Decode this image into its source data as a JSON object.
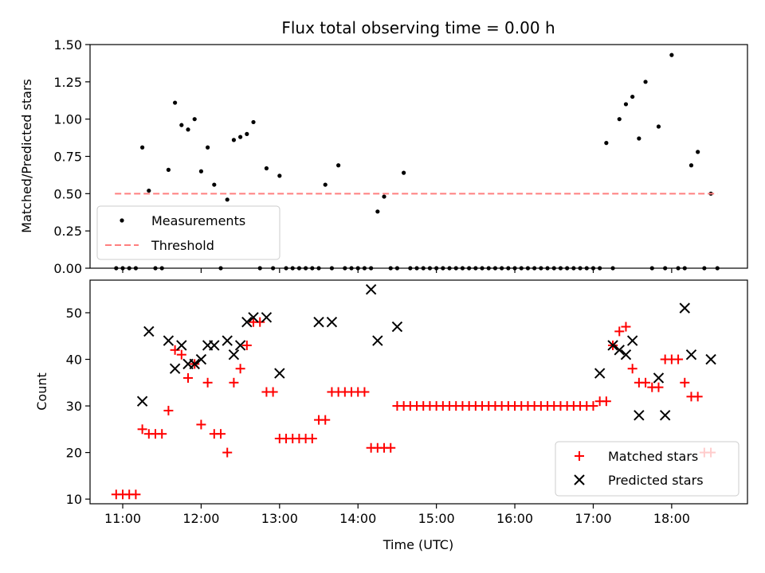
{
  "chart_data": [
    {
      "type": "scatter",
      "title": "Flux total observing time = 0.00 h",
      "xlabel": "",
      "ylabel": "Matched/Predicted stars",
      "xlim": [
        "10:35",
        "18:58"
      ],
      "ylim": [
        0,
        1.5
      ],
      "yticks": [
        "0.00",
        "0.25",
        "0.50",
        "0.75",
        "1.00",
        "1.25",
        "1.50"
      ],
      "xticks": [
        "11:00",
        "12:00",
        "13:00",
        "14:00",
        "15:00",
        "16:00",
        "17:00",
        "18:00"
      ],
      "legend_position": "lower-left",
      "colors": {
        "measurements": "#000000",
        "threshold": "#ff7f7f"
      },
      "series": [
        {
          "name": "Measurements",
          "style": "dot",
          "points": [
            [
              "10:55",
              0
            ],
            [
              "11:00",
              0
            ],
            [
              "11:05",
              0
            ],
            [
              "11:10",
              0
            ],
            [
              "11:15",
              0.81
            ],
            [
              "11:20",
              0.52
            ],
            [
              "11:25",
              0
            ],
            [
              "11:30",
              0
            ],
            [
              "11:35",
              0.66
            ],
            [
              "11:40",
              1.11
            ],
            [
              "11:45",
              0.96
            ],
            [
              "11:50",
              0.93
            ],
            [
              "11:55",
              1.0
            ],
            [
              "12:00",
              0.65
            ],
            [
              "12:05",
              0.81
            ],
            [
              "12:10",
              0.56
            ],
            [
              "12:15",
              0
            ],
            [
              "12:20",
              0.46
            ],
            [
              "12:25",
              0.86
            ],
            [
              "12:30",
              0.88
            ],
            [
              "12:35",
              0.9
            ],
            [
              "12:40",
              0.98
            ],
            [
              "12:45",
              0
            ],
            [
              "12:50",
              0.67
            ],
            [
              "12:55",
              0
            ],
            [
              "13:00",
              0.62
            ],
            [
              "13:05",
              0
            ],
            [
              "13:10",
              0
            ],
            [
              "13:15",
              0
            ],
            [
              "13:20",
              0
            ],
            [
              "13:25",
              0
            ],
            [
              "13:30",
              0
            ],
            [
              "13:35",
              0.56
            ],
            [
              "13:40",
              0
            ],
            [
              "13:45",
              0.69
            ],
            [
              "13:50",
              0
            ],
            [
              "13:55",
              0
            ],
            [
              "14:00",
              0
            ],
            [
              "14:05",
              0
            ],
            [
              "14:10",
              0
            ],
            [
              "14:15",
              0.38
            ],
            [
              "14:20",
              0.48
            ],
            [
              "14:25",
              0
            ],
            [
              "14:30",
              0
            ],
            [
              "14:35",
              0.64
            ],
            [
              "14:40",
              0
            ],
            [
              "14:45",
              0
            ],
            [
              "14:50",
              0
            ],
            [
              "14:55",
              0
            ],
            [
              "15:00",
              0
            ],
            [
              "15:05",
              0
            ],
            [
              "15:10",
              0
            ],
            [
              "15:15",
              0
            ],
            [
              "15:20",
              0
            ],
            [
              "15:25",
              0
            ],
            [
              "15:30",
              0
            ],
            [
              "15:35",
              0
            ],
            [
              "15:40",
              0
            ],
            [
              "15:45",
              0
            ],
            [
              "15:50",
              0
            ],
            [
              "15:55",
              0
            ],
            [
              "16:00",
              0
            ],
            [
              "16:05",
              0
            ],
            [
              "16:10",
              0
            ],
            [
              "16:15",
              0
            ],
            [
              "16:20",
              0
            ],
            [
              "16:25",
              0
            ],
            [
              "16:30",
              0
            ],
            [
              "16:35",
              0
            ],
            [
              "16:40",
              0
            ],
            [
              "16:45",
              0
            ],
            [
              "16:50",
              0
            ],
            [
              "16:55",
              0
            ],
            [
              "17:00",
              0
            ],
            [
              "17:05",
              0
            ],
            [
              "17:10",
              0.84
            ],
            [
              "17:15",
              0
            ],
            [
              "17:20",
              1.0
            ],
            [
              "17:25",
              1.1
            ],
            [
              "17:30",
              1.15
            ],
            [
              "17:35",
              0.87
            ],
            [
              "17:40",
              1.25
            ],
            [
              "17:45",
              0
            ],
            [
              "17:50",
              0.95
            ],
            [
              "17:55",
              0
            ],
            [
              "18:00",
              1.43
            ],
            [
              "18:05",
              0
            ],
            [
              "18:10",
              0
            ],
            [
              "18:15",
              0.69
            ],
            [
              "18:20",
              0.78
            ],
            [
              "18:25",
              0
            ],
            [
              "18:30",
              0.5
            ],
            [
              "18:35",
              0
            ]
          ]
        },
        {
          "name": "Threshold",
          "style": "dashed-line",
          "points": [
            [
              "10:54",
              0.5
            ],
            [
              "18:35",
              0.5
            ]
          ]
        }
      ]
    },
    {
      "type": "scatter",
      "title": "",
      "xlabel": "Time (UTC)",
      "ylabel": "Count",
      "xlim": [
        "10:35",
        "18:58"
      ],
      "ylim": [
        9,
        57
      ],
      "yticks": [
        "10",
        "20",
        "30",
        "40",
        "50"
      ],
      "xticks": [
        "11:00",
        "12:00",
        "13:00",
        "14:00",
        "15:00",
        "16:00",
        "17:00",
        "18:00"
      ],
      "legend_position": "lower-right",
      "colors": {
        "matched": "#ff0000",
        "predicted": "#000000"
      },
      "series": [
        {
          "name": "Matched stars",
          "style": "plus",
          "points": [
            [
              "10:55",
              11
            ],
            [
              "11:00",
              11
            ],
            [
              "11:05",
              11
            ],
            [
              "11:10",
              11
            ],
            [
              "11:15",
              25
            ],
            [
              "11:20",
              24
            ],
            [
              "11:25",
              24
            ],
            [
              "11:30",
              24
            ],
            [
              "11:35",
              29
            ],
            [
              "11:40",
              42
            ],
            [
              "11:45",
              41
            ],
            [
              "11:50",
              36
            ],
            [
              "11:55",
              39
            ],
            [
              "12:00",
              26
            ],
            [
              "12:05",
              35
            ],
            [
              "12:10",
              24
            ],
            [
              "12:15",
              24
            ],
            [
              "12:20",
              20
            ],
            [
              "12:25",
              35
            ],
            [
              "12:30",
              38
            ],
            [
              "12:35",
              43
            ],
            [
              "12:40",
              48
            ],
            [
              "12:45",
              48
            ],
            [
              "12:50",
              33
            ],
            [
              "12:55",
              33
            ],
            [
              "13:00",
              23
            ],
            [
              "13:05",
              23
            ],
            [
              "13:10",
              23
            ],
            [
              "13:15",
              23
            ],
            [
              "13:20",
              23
            ],
            [
              "13:25",
              23
            ],
            [
              "13:30",
              27
            ],
            [
              "13:35",
              27
            ],
            [
              "13:40",
              33
            ],
            [
              "13:45",
              33
            ],
            [
              "13:50",
              33
            ],
            [
              "13:55",
              33
            ],
            [
              "14:00",
              33
            ],
            [
              "14:05",
              33
            ],
            [
              "14:10",
              21
            ],
            [
              "14:15",
              21
            ],
            [
              "14:20",
              21
            ],
            [
              "14:25",
              21
            ],
            [
              "14:30",
              30
            ],
            [
              "14:35",
              30
            ],
            [
              "14:40",
              30
            ],
            [
              "14:45",
              30
            ],
            [
              "14:50",
              30
            ],
            [
              "14:55",
              30
            ],
            [
              "15:00",
              30
            ],
            [
              "15:05",
              30
            ],
            [
              "15:10",
              30
            ],
            [
              "15:15",
              30
            ],
            [
              "15:20",
              30
            ],
            [
              "15:25",
              30
            ],
            [
              "15:30",
              30
            ],
            [
              "15:35",
              30
            ],
            [
              "15:40",
              30
            ],
            [
              "15:45",
              30
            ],
            [
              "15:50",
              30
            ],
            [
              "15:55",
              30
            ],
            [
              "16:00",
              30
            ],
            [
              "16:05",
              30
            ],
            [
              "16:10",
              30
            ],
            [
              "16:15",
              30
            ],
            [
              "16:20",
              30
            ],
            [
              "16:25",
              30
            ],
            [
              "16:30",
              30
            ],
            [
              "16:35",
              30
            ],
            [
              "16:40",
              30
            ],
            [
              "16:45",
              30
            ],
            [
              "16:50",
              30
            ],
            [
              "16:55",
              30
            ],
            [
              "17:00",
              30
            ],
            [
              "17:05",
              31
            ],
            [
              "17:10",
              31
            ],
            [
              "17:15",
              43
            ],
            [
              "17:20",
              46
            ],
            [
              "17:25",
              47
            ],
            [
              "17:30",
              38
            ],
            [
              "17:35",
              35
            ],
            [
              "17:40",
              35
            ],
            [
              "17:45",
              34
            ],
            [
              "17:50",
              34
            ],
            [
              "17:55",
              40
            ],
            [
              "18:00",
              40
            ],
            [
              "18:05",
              40
            ],
            [
              "18:10",
              35
            ],
            [
              "18:15",
              32
            ],
            [
              "18:20",
              32
            ],
            [
              "18:25",
              20
            ],
            [
              "18:30",
              20
            ]
          ]
        },
        {
          "name": "Predicted stars",
          "style": "cross",
          "points": [
            [
              "11:15",
              31
            ],
            [
              "11:20",
              46
            ],
            [
              "11:35",
              44
            ],
            [
              "11:40",
              38
            ],
            [
              "11:45",
              43
            ],
            [
              "11:50",
              39
            ],
            [
              "11:55",
              39
            ],
            [
              "12:00",
              40
            ],
            [
              "12:05",
              43
            ],
            [
              "12:10",
              43
            ],
            [
              "12:20",
              44
            ],
            [
              "12:25",
              41
            ],
            [
              "12:30",
              43
            ],
            [
              "12:35",
              48
            ],
            [
              "12:40",
              49
            ],
            [
              "12:50",
              49
            ],
            [
              "13:00",
              37
            ],
            [
              "13:30",
              48
            ],
            [
              "13:40",
              48
            ],
            [
              "14:10",
              55
            ],
            [
              "14:15",
              44
            ],
            [
              "14:30",
              47
            ],
            [
              "17:05",
              37
            ],
            [
              "17:15",
              43
            ],
            [
              "17:20",
              42
            ],
            [
              "17:25",
              41
            ],
            [
              "17:30",
              44
            ],
            [
              "17:35",
              28
            ],
            [
              "17:50",
              36
            ],
            [
              "17:55",
              28
            ],
            [
              "18:10",
              51
            ],
            [
              "18:15",
              41
            ],
            [
              "18:30",
              40
            ]
          ]
        }
      ]
    }
  ]
}
